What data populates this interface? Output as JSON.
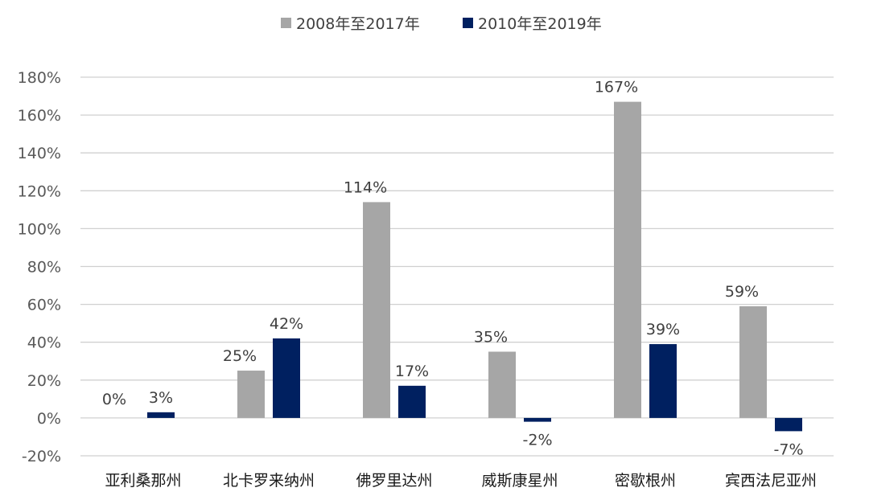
{
  "chart_data": {
    "type": "bar",
    "title": "",
    "xlabel": "",
    "ylabel": "",
    "categories": [
      "亚利桑那州",
      "北卡罗来纳州",
      "佛罗里达州",
      "威斯康星州",
      "密歇根州",
      "宾西法尼亚州"
    ],
    "series": [
      {
        "name": "2008年至2017年",
        "color": "#a6a6a6",
        "values": [
          0,
          25,
          114,
          35,
          167,
          59
        ],
        "labels": [
          "0%",
          "25%",
          "114%",
          "35%",
          "167%",
          "59%"
        ]
      },
      {
        "name": "2010年至2019年",
        "color": "#002060",
        "values": [
          3,
          42,
          17,
          -2,
          39,
          -7
        ],
        "labels": [
          "3%",
          "42%",
          "17%",
          "-2%",
          "39%",
          "-7%"
        ]
      }
    ],
    "ylim": [
      -20,
      180
    ],
    "yticks": [
      -20,
      0,
      20,
      40,
      60,
      80,
      100,
      120,
      140,
      160,
      180
    ],
    "ytick_labels": [
      "-20%",
      "0%",
      "20%",
      "40%",
      "60%",
      "80%",
      "100%",
      "120%",
      "140%",
      "160%",
      "180%"
    ],
    "grid": true,
    "legend_position": "top-center"
  }
}
